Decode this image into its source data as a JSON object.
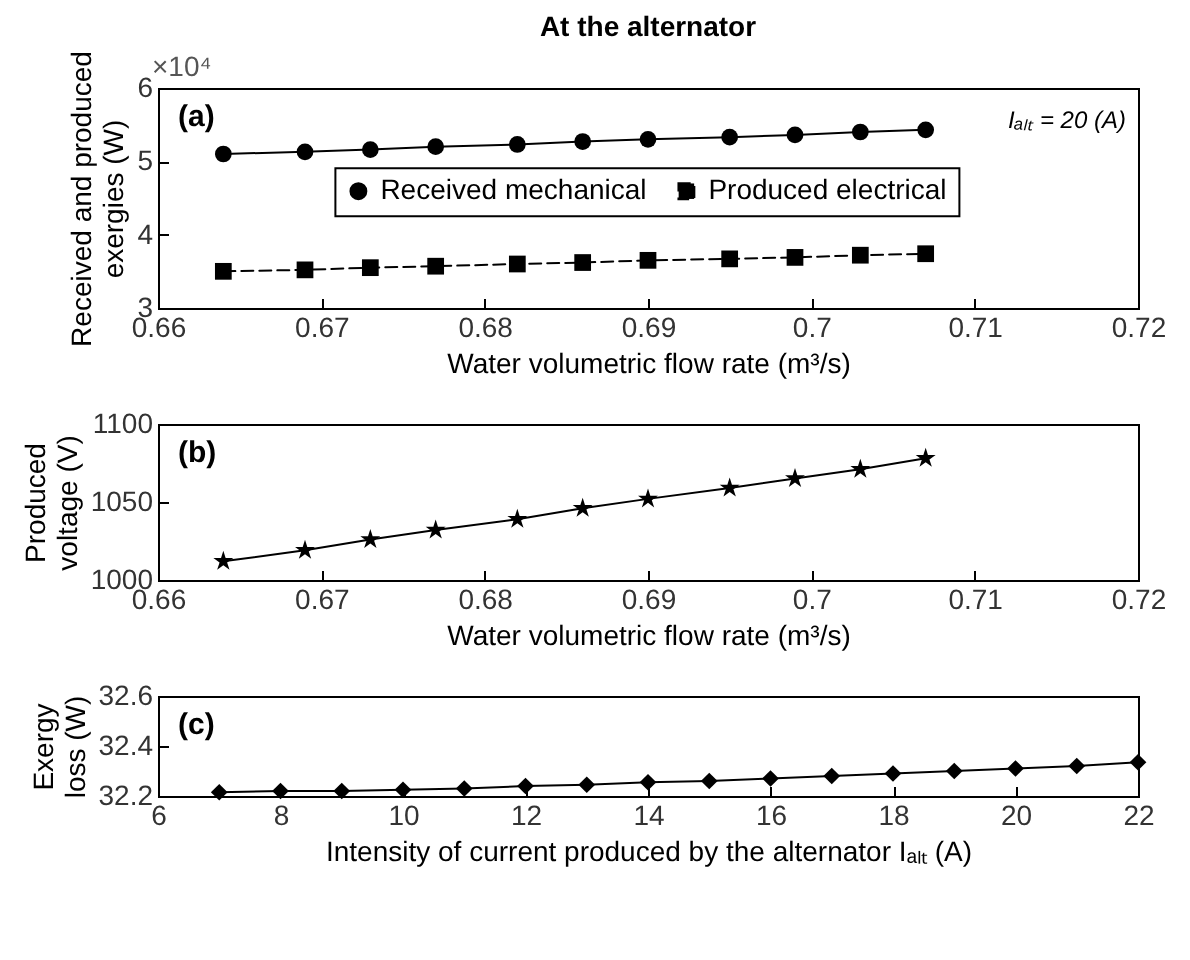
{
  "chart_data": [
    {
      "type": "line",
      "title": "At the alternator",
      "xlabel": "Water volumetric flow rate (m³/s)",
      "ylabel": "Received and produced exergies (W)",
      "x": [
        0.664,
        0.669,
        0.673,
        0.677,
        0.682,
        0.686,
        0.69,
        0.695,
        0.699,
        0.703,
        0.707
      ],
      "series": [
        {
          "name": "Received mechanical",
          "color": "#000000",
          "marker": "circle",
          "line_style": "solid",
          "values": [
            5.1,
            5.13,
            5.16,
            5.2,
            5.23,
            5.27,
            5.3,
            5.33,
            5.36,
            5.4,
            5.43
          ]
        },
        {
          "name": "Produced electrical",
          "color": "#000000",
          "marker": "square",
          "line_style": "dashed",
          "values": [
            3.5,
            3.52,
            3.55,
            3.57,
            3.6,
            3.62,
            3.65,
            3.67,
            3.69,
            3.72,
            3.74
          ]
        }
      ],
      "xlim": [
        0.66,
        0.72
      ],
      "xticks": [
        0.66,
        0.67,
        0.68,
        0.69,
        0.7,
        0.71,
        0.72
      ],
      "ylim": [
        3,
        6
      ],
      "yticks": [
        3,
        4,
        5,
        6
      ],
      "annotations": [
        "(a)",
        "Iₐₗₜ = 20 (A)",
        "×10⁴"
      ],
      "legend": "center",
      "grid": false
    },
    {
      "type": "line",
      "xlabel": "Water volumetric flow rate (m³/s)",
      "ylabel": "Produced voltage (V)",
      "x": [
        0.664,
        0.669,
        0.673,
        0.677,
        0.682,
        0.686,
        0.69,
        0.695,
        0.699,
        0.703,
        0.707
      ],
      "series": [
        {
          "color": "#000000",
          "marker": "star",
          "line_style": "solid",
          "values": [
            1012,
            1019,
            1026,
            1032,
            1039,
            1046,
            1052,
            1059,
            1065,
            1071,
            1078
          ]
        }
      ],
      "xlim": [
        0.66,
        0.72
      ],
      "xticks": [
        0.66,
        0.67,
        0.68,
        0.69,
        0.7,
        0.71,
        0.72
      ],
      "ylim": [
        1000,
        1100
      ],
      "yticks": [
        1000,
        1050,
        1100
      ],
      "annotations": [
        "(b)"
      ],
      "grid": false
    },
    {
      "type": "line",
      "xlabel": "Intensity of current produced by the alternator Iₐₗₜ (A)",
      "ylabel": "Exergy loss (W)",
      "x": [
        7,
        8,
        9,
        10,
        11,
        12,
        13,
        14,
        15,
        16,
        17,
        18,
        19,
        20,
        21,
        22
      ],
      "series": [
        {
          "color": "#000000",
          "marker": "diamond",
          "line_style": "solid",
          "values": [
            32.215,
            32.22,
            32.22,
            32.225,
            32.23,
            32.24,
            32.245,
            32.255,
            32.26,
            32.27,
            32.28,
            32.29,
            32.3,
            32.31,
            32.32,
            32.335
          ]
        }
      ],
      "xlim": [
        6,
        22
      ],
      "xticks": [
        6,
        8,
        10,
        12,
        14,
        16,
        18,
        20,
        22
      ],
      "ylim": [
        32.2,
        32.6
      ],
      "yticks": [
        32.2,
        32.4,
        32.6
      ],
      "annotations": [
        "(c)"
      ],
      "grid": false
    }
  ]
}
